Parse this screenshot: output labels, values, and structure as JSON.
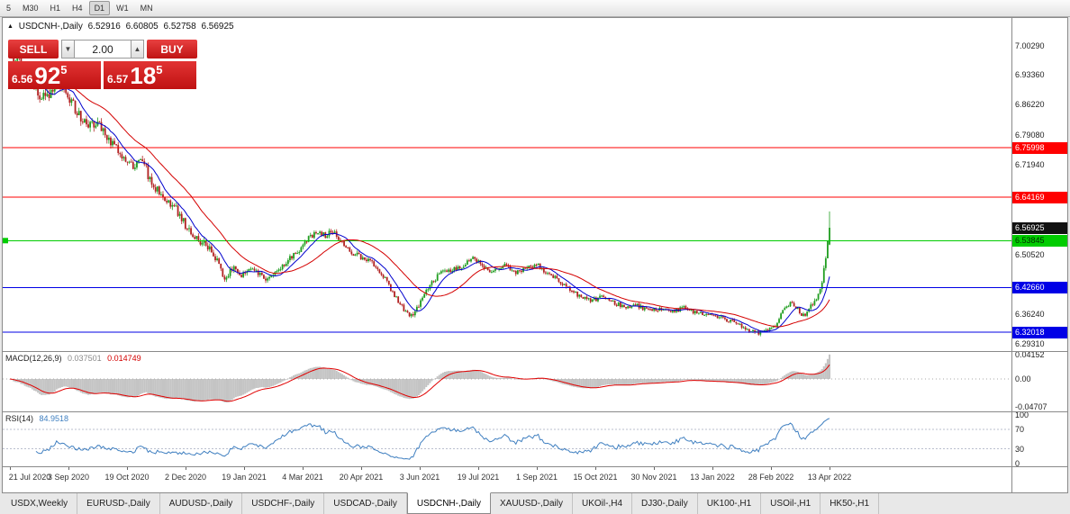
{
  "toolbar": {
    "timeframes": [
      "5",
      "M30",
      "H1",
      "H4",
      "D1",
      "W1",
      "MN"
    ],
    "active": "D1"
  },
  "chart_header": {
    "marker": "▲",
    "symbol": "USDCNH-,Daily",
    "open": "6.52916",
    "high": "6.60805",
    "low": "6.52758",
    "close": "6.56925"
  },
  "trade_panel": {
    "sell_label": "SELL",
    "buy_label": "BUY",
    "volume": "2.00",
    "vol_down_icon": "▼",
    "vol_up_icon": "▲",
    "sell_price": {
      "small": "6.56",
      "big": "92",
      "sup": "5"
    },
    "buy_price": {
      "small": "6.57",
      "big": "18",
      "sup": "5"
    },
    "red": "#c01414"
  },
  "price_axis": {
    "labels": [
      {
        "text": "7.00290",
        "price": 7.0029,
        "style": "plain"
      },
      {
        "text": "6.93360",
        "price": 6.9336,
        "style": "plain"
      },
      {
        "text": "6.86220",
        "price": 6.8622,
        "style": "plain"
      },
      {
        "text": "6.79080",
        "price": 6.7908,
        "style": "plain"
      },
      {
        "text": "6.75998",
        "price": 6.75998,
        "style": "badge",
        "bg": "#ff0000",
        "fg": "#ffffff"
      },
      {
        "text": "6.71940",
        "price": 6.7194,
        "style": "plain"
      },
      {
        "text": "6.64169",
        "price": 6.64169,
        "style": "badge",
        "bg": "#ff0000",
        "fg": "#ffffff"
      },
      {
        "text": "6.56925",
        "price": 6.56925,
        "style": "badge",
        "bg": "#111111",
        "fg": "#ffffff"
      },
      {
        "text": "6.53845",
        "price": 6.53845,
        "style": "badge",
        "bg": "#00cc00",
        "fg": "#002b00"
      },
      {
        "text": "6.50520",
        "price": 6.5052,
        "style": "plain"
      },
      {
        "text": "6.42660",
        "price": 6.4266,
        "style": "badge",
        "bg": "#0000e6",
        "fg": "#ffffff"
      },
      {
        "text": "6.36240",
        "price": 6.3624,
        "style": "plain"
      },
      {
        "text": "6.32018",
        "price": 6.32018,
        "style": "badge",
        "bg": "#0000e6",
        "fg": "#ffffff"
      },
      {
        "text": "6.29310",
        "price": 6.2931,
        "style": "plain"
      }
    ]
  },
  "date_axis": {
    "labels": [
      "21 Jul 2020",
      "3 Sep 2020",
      "19 Oct 2020",
      "2 Dec 2020",
      "19 Jan 2021",
      "4 Mar 2021",
      "20 Apr 2021",
      "3 Jun 2021",
      "19 Jul 2021",
      "1 Sep 2021",
      "15 Oct 2021",
      "30 Nov 2021",
      "13 Jan 2022",
      "28 Feb 2022",
      "13 Apr 2022"
    ]
  },
  "indicators": {
    "macd": {
      "label": "MACD(12,26,9)",
      "value_main": "0.037501",
      "value_signal": "0.014749",
      "axis_labels": [
        {
          "text": "0.04152",
          "v": 0.04152
        },
        {
          "text": "0.00",
          "v": 0
        },
        {
          "text": "-0.04707",
          "v": -0.04707
        }
      ],
      "axis_max": 0.0462,
      "axis_min": -0.0554,
      "histogram_color": "#c4c4c4",
      "signal_color": "#e00000"
    },
    "rsi": {
      "label": "RSI(14)",
      "value": "84.9518",
      "axis_labels": [
        {
          "text": "100",
          "v": 100
        },
        {
          "text": "70",
          "v": 70
        },
        {
          "text": "30",
          "v": 30
        },
        {
          "text": "0",
          "v": 0
        }
      ],
      "levels": [
        70,
        30
      ],
      "line_color": "#3f7fc0",
      "axis_max": 105,
      "axis_min": -6
    }
  },
  "tabs": {
    "items": [
      "USDX,Weekly",
      "EURUSD-,Daily",
      "AUDUSD-,Daily",
      "USDCHF-,Daily",
      "USDCAD-,Daily",
      "USDCNH-,Daily",
      "XAUUSD-,Daily",
      "UKOil-,H4",
      "DJ30-,Daily",
      "UK100-,H1",
      "USOil-,H1",
      "HK50-,H1"
    ],
    "active": "USDCNH-,Daily"
  },
  "chart_data": {
    "type": "candlestick",
    "symbol": "USDCNH-",
    "timeframe": "Daily",
    "title": "USDCNH-,Daily",
    "last_candle": {
      "open": 6.52916,
      "high": 6.60805,
      "low": 6.52758,
      "close": 6.56925
    },
    "main": {
      "price_at_top": 7.0691,
      "price_at_bottom": 6.2753,
      "candle_count": 440,
      "up_color": "#1f9d1f",
      "down_color": "#b22222",
      "ma_fast": {
        "period": 10,
        "color": "#0000cd"
      },
      "ma_slow": {
        "period": 30,
        "color": "#d40000"
      },
      "hlines": [
        {
          "price": 6.75998,
          "color": "#ff0000"
        },
        {
          "price": 6.64169,
          "color": "#ff0000"
        },
        {
          "price": 6.53845,
          "color": "#00cc00",
          "marker": true
        },
        {
          "price": 6.4266,
          "color": "#0000e6"
        },
        {
          "price": 6.32018,
          "color": "#0000e6"
        }
      ],
      "close_waypoints": [
        [
          0,
          6.985
        ],
        [
          0.013,
          6.955
        ],
        [
          0.03,
          6.905
        ],
        [
          0.044,
          6.87
        ],
        [
          0.055,
          6.915
        ],
        [
          0.068,
          6.885
        ],
        [
          0.079,
          6.855
        ],
        [
          0.095,
          6.81
        ],
        [
          0.106,
          6.825
        ],
        [
          0.121,
          6.78
        ],
        [
          0.136,
          6.745
        ],
        [
          0.15,
          6.715
        ],
        [
          0.161,
          6.74
        ],
        [
          0.172,
          6.675
        ],
        [
          0.189,
          6.64
        ],
        [
          0.202,
          6.615
        ],
        [
          0.216,
          6.57
        ],
        [
          0.227,
          6.545
        ],
        [
          0.241,
          6.525
        ],
        [
          0.254,
          6.49
        ],
        [
          0.262,
          6.445
        ],
        [
          0.273,
          6.475
        ],
        [
          0.285,
          6.455
        ],
        [
          0.296,
          6.475
        ],
        [
          0.31,
          6.445
        ],
        [
          0.32,
          6.455
        ],
        [
          0.332,
          6.48
        ],
        [
          0.345,
          6.5
        ],
        [
          0.356,
          6.52
        ],
        [
          0.365,
          6.545
        ],
        [
          0.375,
          6.56
        ],
        [
          0.385,
          6.55
        ],
        [
          0.393,
          6.565
        ],
        [
          0.4,
          6.545
        ],
        [
          0.41,
          6.52
        ],
        [
          0.422,
          6.505
        ],
        [
          0.433,
          6.495
        ],
        [
          0.445,
          6.48
        ],
        [
          0.457,
          6.45
        ],
        [
          0.47,
          6.405
        ],
        [
          0.482,
          6.37
        ],
        [
          0.492,
          6.36
        ],
        [
          0.502,
          6.395
        ],
        [
          0.515,
          6.44
        ],
        [
          0.527,
          6.465
        ],
        [
          0.54,
          6.47
        ],
        [
          0.553,
          6.48
        ],
        [
          0.566,
          6.5
        ],
        [
          0.578,
          6.47
        ],
        [
          0.59,
          6.465
        ],
        [
          0.603,
          6.48
        ],
        [
          0.616,
          6.46
        ],
        [
          0.63,
          6.475
        ],
        [
          0.645,
          6.48
        ],
        [
          0.658,
          6.455
        ],
        [
          0.67,
          6.445
        ],
        [
          0.684,
          6.42
        ],
        [
          0.697,
          6.405
        ],
        [
          0.71,
          6.395
        ],
        [
          0.723,
          6.405
        ],
        [
          0.737,
          6.39
        ],
        [
          0.75,
          6.38
        ],
        [
          0.765,
          6.385
        ],
        [
          0.78,
          6.37
        ],
        [
          0.793,
          6.375
        ],
        [
          0.808,
          6.37
        ],
        [
          0.822,
          6.378
        ],
        [
          0.836,
          6.368
        ],
        [
          0.85,
          6.36
        ],
        [
          0.862,
          6.358
        ],
        [
          0.875,
          6.35
        ],
        [
          0.888,
          6.34
        ],
        [
          0.9,
          6.328
        ],
        [
          0.912,
          6.318
        ],
        [
          0.923,
          6.33
        ],
        [
          0.933,
          6.33
        ],
        [
          0.943,
          6.37
        ],
        [
          0.952,
          6.39
        ],
        [
          0.96,
          6.375
        ],
        [
          0.968,
          6.36
        ],
        [
          0.976,
          6.375
        ],
        [
          0.984,
          6.405
        ],
        [
          0.991,
          6.44
        ],
        [
          0.996,
          6.5
        ],
        [
          1,
          6.56925
        ]
      ],
      "volatility_waypoints": [
        [
          0,
          0.02
        ],
        [
          0.05,
          0.018
        ],
        [
          0.12,
          0.015
        ],
        [
          0.2,
          0.012
        ],
        [
          0.3,
          0.009
        ],
        [
          0.45,
          0.008
        ],
        [
          0.6,
          0.0075
        ],
        [
          0.8,
          0.0065
        ],
        [
          0.93,
          0.006
        ],
        [
          0.97,
          0.008
        ],
        [
          1,
          0.012
        ]
      ]
    }
  }
}
